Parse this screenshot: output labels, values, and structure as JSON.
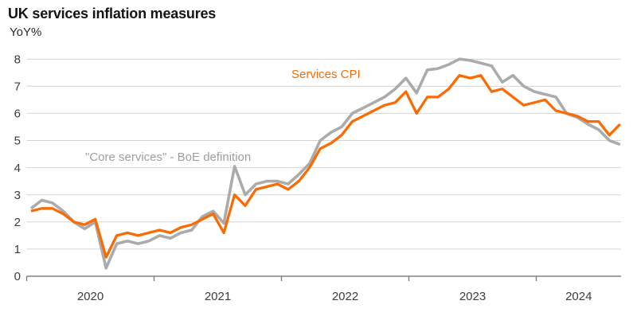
{
  "title": "UK services inflation measures",
  "unit_label": "YoY%",
  "colors": {
    "services_cpi": "#f96b05",
    "core_services": "#ababab",
    "grid": "#d4d4d4",
    "axis": "#808080",
    "title_text": "#141414",
    "tick_text": "#3c3c3c",
    "core_label_text": "#9e9e9e"
  },
  "chart_data": {
    "type": "line",
    "title": "UK services inflation measures",
    "ylabel": "YoY%",
    "ylim": [
      0,
      8
    ],
    "yticks": [
      "0",
      "1",
      "2",
      "3",
      "4",
      "5",
      "6",
      "7",
      "8"
    ],
    "grid": "horizontal",
    "legend_position": "inline-labels",
    "x_range": "Jan 2020 - Aug 2024 (monthly)",
    "x_year_labels": [
      "2020",
      "2021",
      "2022",
      "2023",
      "2024"
    ],
    "months": [
      "2020-01",
      "2020-02",
      "2020-03",
      "2020-04",
      "2020-05",
      "2020-06",
      "2020-07",
      "2020-08",
      "2020-09",
      "2020-10",
      "2020-11",
      "2020-12",
      "2021-01",
      "2021-02",
      "2021-03",
      "2021-04",
      "2021-05",
      "2021-06",
      "2021-07",
      "2021-08",
      "2021-09",
      "2021-10",
      "2021-11",
      "2021-12",
      "2022-01",
      "2022-02",
      "2022-03",
      "2022-04",
      "2022-05",
      "2022-06",
      "2022-07",
      "2022-08",
      "2022-09",
      "2022-10",
      "2022-11",
      "2022-12",
      "2023-01",
      "2023-02",
      "2023-03",
      "2023-04",
      "2023-05",
      "2023-06",
      "2023-07",
      "2023-08",
      "2023-09",
      "2023-10",
      "2023-11",
      "2023-12",
      "2024-01",
      "2024-02",
      "2024-03",
      "2024-04",
      "2024-05",
      "2024-06",
      "2024-07",
      "2024-08"
    ],
    "series": [
      {
        "name": "Services CPI",
        "label": "Services CPI",
        "color": "#f96b05",
        "values": [
          2.4,
          2.5,
          2.5,
          2.3,
          2.0,
          1.9,
          2.1,
          0.7,
          1.5,
          1.6,
          1.5,
          1.6,
          1.7,
          1.6,
          1.8,
          1.9,
          2.1,
          2.3,
          1.6,
          3.0,
          2.6,
          3.2,
          3.3,
          3.4,
          3.2,
          3.5,
          4.0,
          4.7,
          4.9,
          5.2,
          5.7,
          5.9,
          6.1,
          6.3,
          6.4,
          6.8,
          6.0,
          6.6,
          6.6,
          6.9,
          7.4,
          7.3,
          7.4,
          6.8,
          6.9,
          6.6,
          6.3,
          6.4,
          6.5,
          6.1,
          6.0,
          5.9,
          5.7,
          5.7,
          5.2,
          5.6
        ]
      },
      {
        "name": "Core services - BoE definition",
        "label": "\"Core services\" - BoE definition",
        "color": "#ababab",
        "values": [
          2.5,
          2.8,
          2.7,
          2.4,
          2.0,
          1.75,
          2.0,
          0.3,
          1.2,
          1.3,
          1.2,
          1.3,
          1.5,
          1.4,
          1.6,
          1.7,
          2.2,
          2.4,
          1.95,
          4.05,
          3.0,
          3.4,
          3.5,
          3.5,
          3.4,
          3.75,
          4.15,
          5.0,
          5.3,
          5.5,
          6.0,
          6.2,
          6.4,
          6.6,
          6.9,
          7.3,
          6.75,
          7.6,
          7.65,
          7.8,
          8.0,
          7.95,
          7.85,
          7.75,
          7.15,
          7.4,
          7.0,
          6.8,
          6.7,
          6.6,
          6.0,
          5.85,
          5.6,
          5.4,
          5.0,
          4.85
        ]
      }
    ]
  }
}
